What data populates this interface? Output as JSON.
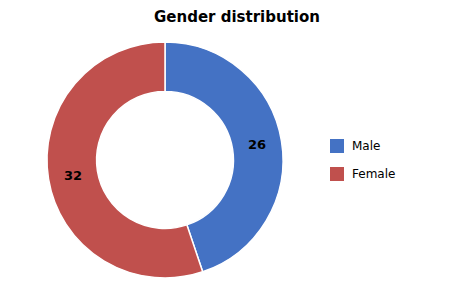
{
  "chart_data": {
    "type": "donut",
    "title": "Gender distribution",
    "categories": [
      "Male",
      "Female"
    ],
    "values": [
      26,
      32
    ],
    "colors": [
      "#4472C4",
      "#C0504D"
    ],
    "data_labels": true,
    "legend": "right"
  }
}
